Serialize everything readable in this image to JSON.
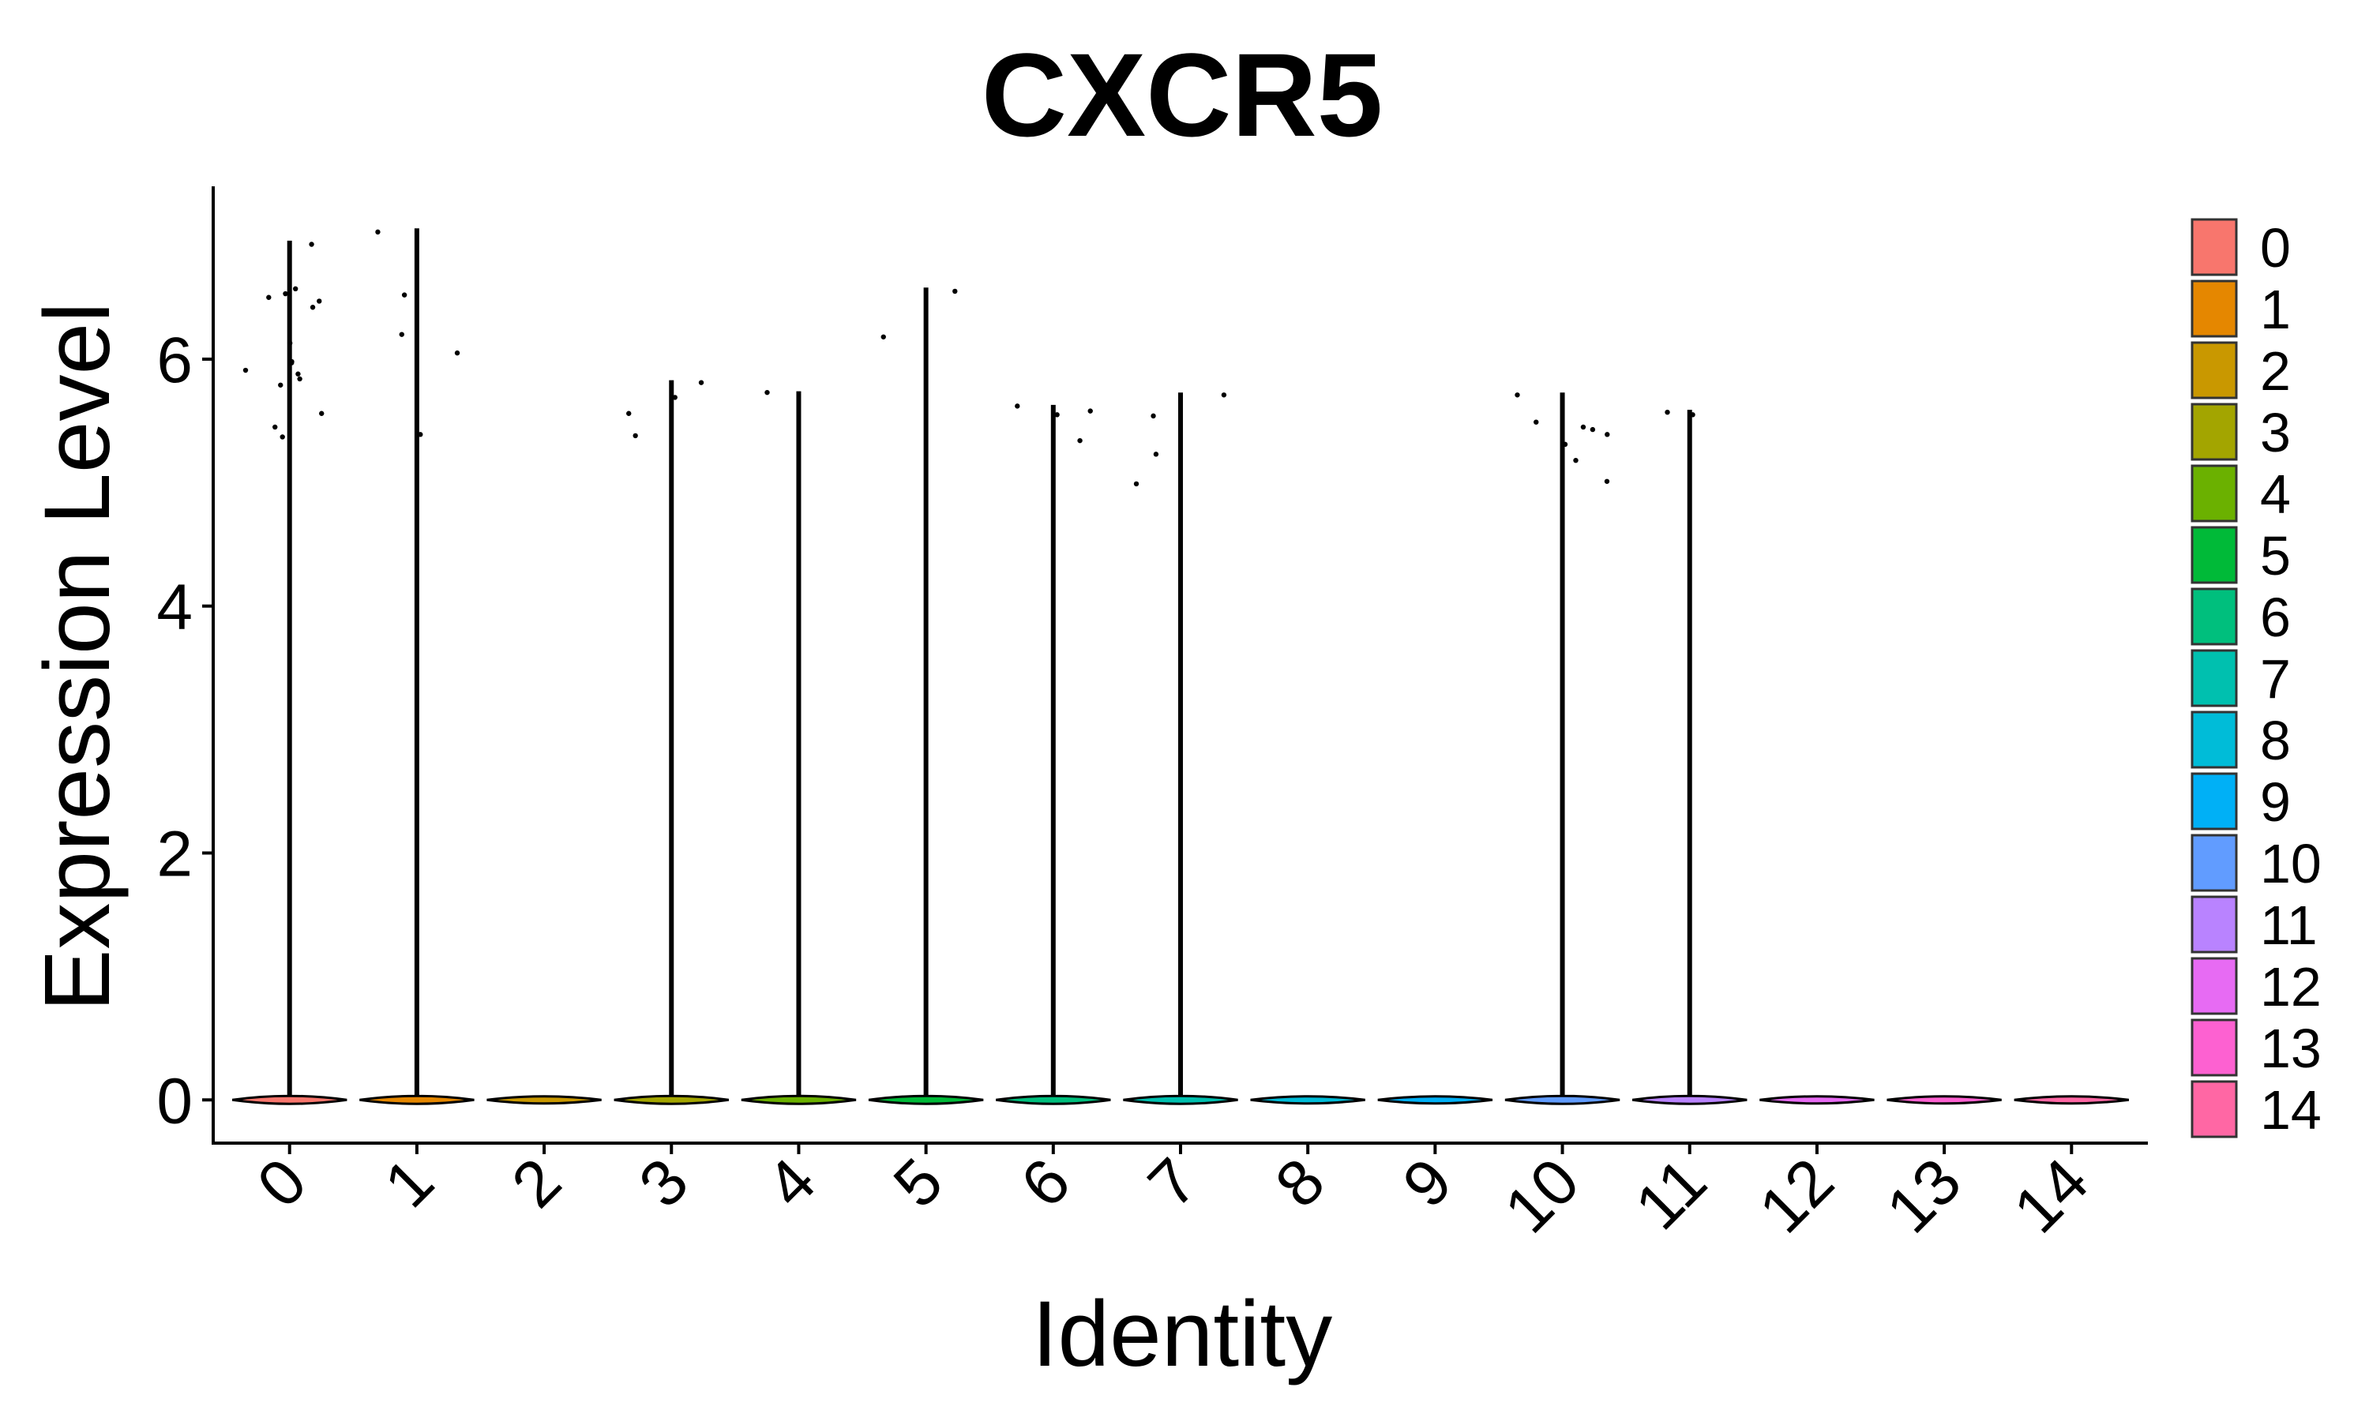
{
  "chart_data": {
    "type": "violin",
    "title": "CXCR5",
    "xlabel": "Identity",
    "ylabel": "Expression Level",
    "ylim": [
      -0.35,
      7.4
    ],
    "yticks": [
      0,
      2,
      4,
      6
    ],
    "grid": false,
    "legend_placement": "right",
    "categories": [
      "0",
      "1",
      "2",
      "3",
      "4",
      "5",
      "6",
      "7",
      "8",
      "9",
      "10",
      "11",
      "12",
      "13",
      "14"
    ],
    "colors": [
      "#F8766D",
      "#E58700",
      "#C99800",
      "#A3A500",
      "#6BB100",
      "#00BA38",
      "#00BF7D",
      "#00C0AF",
      "#00BCD8",
      "#00B0F6",
      "#619CFF",
      "#B983FF",
      "#E76BF3",
      "#FD61D1",
      "#FF67A4"
    ],
    "violin_max": [
      6.95,
      7.05,
      0,
      5.82,
      5.73,
      6.57,
      5.62,
      5.72,
      0,
      0,
      5.72,
      5.58,
      0,
      0,
      0
    ],
    "points": [
      {
        "group": "0",
        "y": [
          6.93,
          6.57,
          6.53,
          6.5,
          6.47,
          6.42,
          6.13,
          5.98,
          5.97,
          5.91,
          5.88,
          5.84,
          5.79,
          5.56,
          5.45,
          5.37
        ]
      },
      {
        "group": "1",
        "y": [
          7.03,
          6.52,
          6.2,
          6.05,
          5.39
        ]
      },
      {
        "group": "3",
        "y": [
          5.81,
          5.69,
          5.56,
          5.38
        ]
      },
      {
        "group": "4",
        "y": [
          5.73
        ]
      },
      {
        "group": "5",
        "y": [
          6.55,
          6.18
        ]
      },
      {
        "group": "6",
        "y": [
          5.62,
          5.58,
          5.55,
          5.34
        ]
      },
      {
        "group": "7",
        "y": [
          5.71,
          5.54,
          5.23,
          4.99
        ]
      },
      {
        "group": "10",
        "y": [
          5.71,
          5.49,
          5.45,
          5.43,
          5.39,
          5.31,
          5.18,
          5.01
        ]
      },
      {
        "group": "11",
        "y": [
          5.57,
          5.55
        ]
      }
    ]
  }
}
